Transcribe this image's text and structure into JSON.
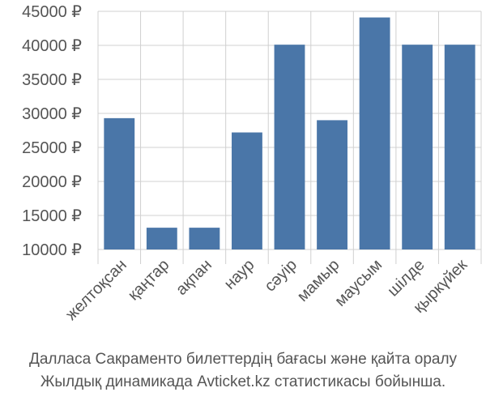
{
  "chart_data": {
    "type": "bar",
    "categories": [
      "желтоқсан",
      "қаңтар",
      "ақпан",
      "наур",
      "сәуір",
      "мамыр",
      "маусым",
      "шілде",
      "қыркүйек"
    ],
    "values": [
      29300,
      13200,
      13200,
      27200,
      40100,
      29000,
      44100,
      40100,
      40100
    ],
    "yticks": [
      "10000 ₽",
      "15000 ₽",
      "20000 ₽",
      "25000 ₽",
      "30000 ₽",
      "35000 ₽",
      "40000 ₽",
      "45000 ₽"
    ],
    "ytick_values": [
      10000,
      15000,
      20000,
      25000,
      30000,
      35000,
      40000,
      45000
    ],
    "ylim": [
      10000,
      45000
    ],
    "grid": true,
    "bar_color": "#4a76a8",
    "grid_color": "#d0d0d0",
    "title": "",
    "xlabel": "",
    "ylabel": ""
  },
  "caption": {
    "line1": "Далласа Сакраменто билеттердің бағасы және қайта оралу",
    "line2": "Жылдық динамикада Avticket.kz статистикасы бойынша."
  }
}
